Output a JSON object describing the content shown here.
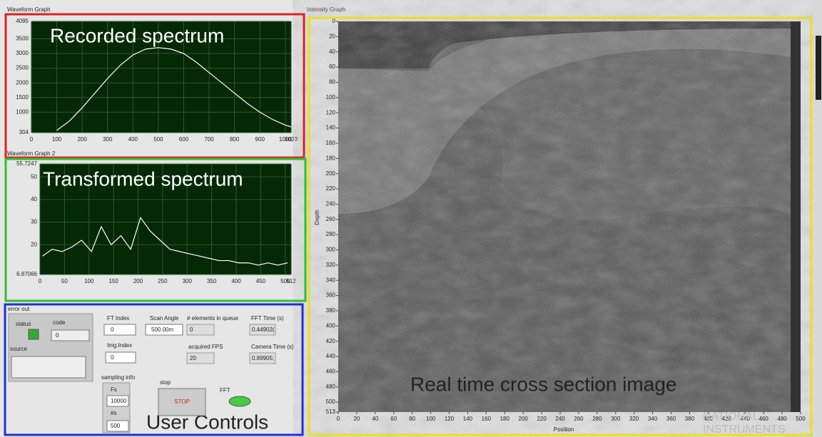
{
  "waveform_graph": {
    "label": "Waveform Graph",
    "annotation": "Recorded spectrum",
    "x": [
      100,
      150,
      200,
      250,
      300,
      350,
      400,
      450,
      500,
      550,
      600,
      650,
      700,
      750,
      800,
      850,
      900,
      950,
      1000,
      1023
    ],
    "y": [
      380,
      700,
      1150,
      1650,
      2150,
      2600,
      2950,
      3150,
      3200,
      3150,
      3000,
      2700,
      2350,
      2000,
      1650,
      1300,
      1000,
      750,
      560,
      500
    ],
    "xlim": [
      0,
      1023
    ],
    "ylim": [
      304,
      4095
    ],
    "xticks": [
      0,
      100,
      200,
      300,
      400,
      500,
      600,
      700,
      800,
      900,
      1000,
      1023
    ],
    "yticks": [
      304,
      1000,
      1500,
      2000,
      2500,
      3000,
      3500,
      4095
    ]
  },
  "waveform_graph_2": {
    "label": "Waveform Graph 2",
    "annotation": "Transformed spectrum",
    "x": [
      5,
      25,
      45,
      65,
      85,
      105,
      125,
      145,
      165,
      185,
      205,
      225,
      245,
      265,
      285,
      305,
      325,
      345,
      365,
      385,
      405,
      425,
      445,
      465,
      485,
      505
    ],
    "y": [
      15,
      18,
      17,
      19,
      22,
      17,
      28,
      20,
      24,
      18,
      32,
      26,
      22,
      18,
      17,
      16,
      15,
      14,
      13,
      13,
      12,
      12,
      11,
      12,
      11,
      12
    ],
    "xlim": [
      0,
      512
    ],
    "ylim": [
      6.87066,
      55.7247
    ],
    "xticks": [
      0,
      50,
      100,
      150,
      200,
      250,
      300,
      350,
      400,
      450,
      500,
      512
    ],
    "yticks": [
      6.87066,
      20,
      30,
      40,
      50,
      55.7247
    ]
  },
  "intensity_graph": {
    "label": "Intensity Graph",
    "annotation": "Real time cross section image",
    "x_label": "Position",
    "y_label": "Depth",
    "xlim": [
      0,
      500
    ],
    "ylim": [
      0,
      513
    ],
    "xticks": [
      0,
      20,
      40,
      60,
      80,
      100,
      120,
      140,
      160,
      180,
      200,
      220,
      240,
      260,
      280,
      300,
      320,
      340,
      360,
      380,
      400,
      420,
      440,
      460,
      480,
      500
    ],
    "yticks": [
      0,
      20,
      40,
      60,
      80,
      100,
      120,
      140,
      160,
      180,
      200,
      220,
      240,
      260,
      280,
      300,
      320,
      340,
      360,
      380,
      400,
      420,
      440,
      460,
      480,
      500,
      513
    ]
  },
  "controls": {
    "annotation": "User Controls",
    "error_out": "error out",
    "status": "status",
    "code": "code",
    "code_value": "0",
    "source": "source",
    "ft_index": "FT Index",
    "ft_index_value": "0",
    "img_index": "Img.Index",
    "img_index_value": "0",
    "sampling_info": "sampling info",
    "fs": "Fs",
    "fs_value": "10000",
    "ns": "#s",
    "ns_value": "500",
    "scan_angle": "Scan Angle",
    "scan_angle_value": "500.00m",
    "elements_in_queue": "# elements in queue",
    "elements_in_queue_value": "0",
    "fft_time": "FFT Time (s)",
    "fft_time_value": "0.44902(",
    "acquired_fps": "acquired FPS",
    "acquired_fps_value": "20",
    "camera_time": "Camera Time (s)",
    "camera_time_value": "0.89905;",
    "stop": "stop",
    "stop_button": "STOP",
    "fft": "FFT"
  },
  "watermark": [
    "NATIONAL",
    "INSTRUMENTS"
  ]
}
